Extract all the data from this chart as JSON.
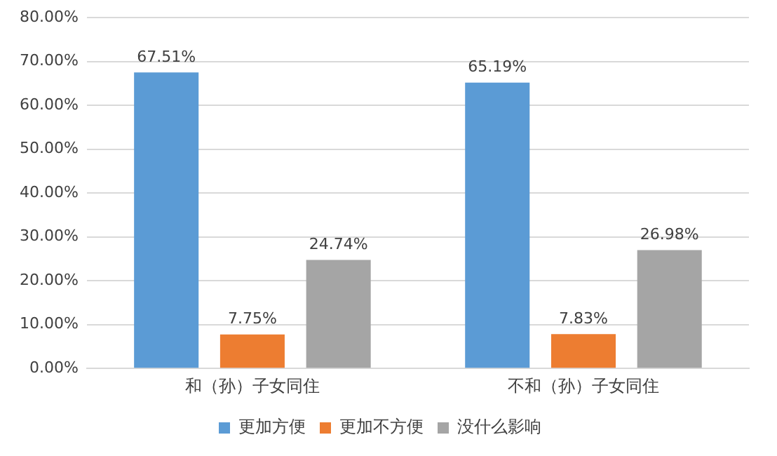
{
  "chart_data": {
    "type": "bar",
    "categories": [
      "和（孙）子女同住",
      "不和（孙）子女同住"
    ],
    "series": [
      {
        "name": "更加方便",
        "color": "#5b9bd5",
        "values": [
          67.51,
          65.19
        ],
        "value_labels": [
          "67.51%",
          "65.19%"
        ]
      },
      {
        "name": "更加不方便",
        "color": "#ed7d31",
        "values": [
          7.75,
          7.83
        ],
        "value_labels": [
          "7.75%",
          "7.83%"
        ]
      },
      {
        "name": "没什么影响",
        "color": "#a5a5a5",
        "values": [
          24.74,
          26.98
        ],
        "value_labels": [
          "24.74%",
          "26.98%"
        ]
      }
    ],
    "ylim": [
      0,
      80
    ],
    "yticks": [
      {
        "value": 0,
        "label": "0.00%"
      },
      {
        "value": 10,
        "label": "10.00%"
      },
      {
        "value": 20,
        "label": "20.00%"
      },
      {
        "value": 30,
        "label": "30.00%"
      },
      {
        "value": 40,
        "label": "40.00%"
      },
      {
        "value": 50,
        "label": "50.00%"
      },
      {
        "value": 60,
        "label": "60.00%"
      },
      {
        "value": 70,
        "label": "70.00%"
      },
      {
        "value": 80,
        "label": "80.00%"
      }
    ],
    "grid": "y",
    "legend": "bottom"
  }
}
